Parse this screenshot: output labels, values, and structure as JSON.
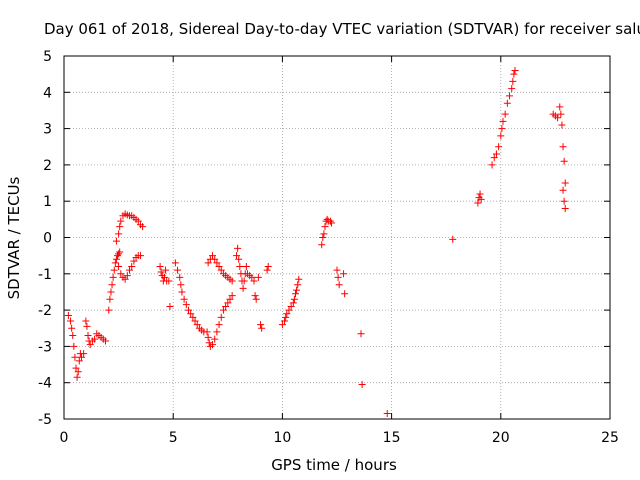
{
  "chart_data": {
    "type": "scatter",
    "title": "Day 061 of 2018, Sidereal Day-to-day VTEC variation (SDTVAR) for receiver salu",
    "xlabel": "GPS time / hours",
    "ylabel": "SDTVAR / TECUs",
    "xlim": [
      0,
      25
    ],
    "ylim": [
      -5,
      5
    ],
    "xticks": [
      0,
      5,
      10,
      15,
      20,
      25
    ],
    "yticks": [
      -5,
      -4,
      -3,
      -2,
      -1,
      0,
      1,
      2,
      3,
      4,
      5
    ],
    "grid": true,
    "marker": "+",
    "colors": {
      "points": "#ff0000",
      "grid": "#a0a0a0",
      "axes": "#000000"
    },
    "series": [
      {
        "values": [
          [
            0.2,
            -2.15
          ],
          [
            0.3,
            -2.3
          ],
          [
            0.35,
            -2.5
          ],
          [
            0.4,
            -2.7
          ],
          [
            0.45,
            -3.0
          ],
          [
            0.5,
            -3.3
          ],
          [
            0.55,
            -3.6
          ],
          [
            0.6,
            -3.85
          ],
          [
            0.65,
            -3.7
          ],
          [
            0.7,
            -3.4
          ],
          [
            0.75,
            -3.2
          ],
          [
            0.8,
            -3.3
          ],
          [
            0.9,
            -3.2
          ],
          [
            1.0,
            -2.3
          ],
          [
            1.05,
            -2.45
          ],
          [
            1.1,
            -2.7
          ],
          [
            1.15,
            -2.85
          ],
          [
            1.2,
            -2.95
          ],
          [
            1.3,
            -2.85
          ],
          [
            1.4,
            -2.8
          ],
          [
            1.5,
            -2.65
          ],
          [
            1.6,
            -2.7
          ],
          [
            1.7,
            -2.75
          ],
          [
            1.8,
            -2.8
          ],
          [
            1.9,
            -2.85
          ],
          [
            2.05,
            -2.0
          ],
          [
            2.1,
            -1.7
          ],
          [
            2.15,
            -1.5
          ],
          [
            2.2,
            -1.3
          ],
          [
            2.25,
            -1.1
          ],
          [
            2.3,
            -0.9
          ],
          [
            2.35,
            -0.7
          ],
          [
            2.4,
            -0.6
          ],
          [
            2.45,
            -0.5
          ],
          [
            2.5,
            -0.45
          ],
          [
            2.55,
            -0.4
          ],
          [
            2.4,
            -0.1
          ],
          [
            2.5,
            0.1
          ],
          [
            2.55,
            0.3
          ],
          [
            2.6,
            0.45
          ],
          [
            2.7,
            0.6
          ],
          [
            2.8,
            0.65
          ],
          [
            2.9,
            0.62
          ],
          [
            3.0,
            0.6
          ],
          [
            3.1,
            0.6
          ],
          [
            3.2,
            0.55
          ],
          [
            3.3,
            0.5
          ],
          [
            3.4,
            0.45
          ],
          [
            3.5,
            0.35
          ],
          [
            3.6,
            0.3
          ],
          [
            2.5,
            -0.8
          ],
          [
            2.6,
            -1.0
          ],
          [
            2.7,
            -1.1
          ],
          [
            2.8,
            -1.15
          ],
          [
            2.9,
            -1.05
          ],
          [
            3.0,
            -0.9
          ],
          [
            3.1,
            -0.8
          ],
          [
            3.2,
            -0.65
          ],
          [
            3.3,
            -0.55
          ],
          [
            3.4,
            -0.5
          ],
          [
            3.5,
            -0.5
          ],
          [
            4.4,
            -0.8
          ],
          [
            4.45,
            -0.95
          ],
          [
            4.5,
            -1.05
          ],
          [
            4.55,
            -1.2
          ],
          [
            4.6,
            -1.1
          ],
          [
            4.65,
            -0.9
          ],
          [
            4.7,
            -1.2
          ],
          [
            4.8,
            -1.2
          ],
          [
            4.85,
            -1.9
          ],
          [
            5.1,
            -0.7
          ],
          [
            5.2,
            -0.9
          ],
          [
            5.3,
            -1.1
          ],
          [
            5.35,
            -1.3
          ],
          [
            5.4,
            -1.5
          ],
          [
            5.5,
            -1.7
          ],
          [
            5.6,
            -1.85
          ],
          [
            5.7,
            -2.0
          ],
          [
            5.8,
            -2.1
          ],
          [
            5.9,
            -2.2
          ],
          [
            6.0,
            -2.3
          ],
          [
            6.1,
            -2.4
          ],
          [
            6.2,
            -2.5
          ],
          [
            6.3,
            -2.55
          ],
          [
            6.4,
            -2.6
          ],
          [
            6.55,
            -2.6
          ],
          [
            6.6,
            -2.75
          ],
          [
            6.65,
            -2.9
          ],
          [
            6.7,
            -3.0
          ],
          [
            6.8,
            -2.95
          ],
          [
            6.9,
            -2.8
          ],
          [
            7.0,
            -2.6
          ],
          [
            7.1,
            -2.4
          ],
          [
            7.2,
            -2.2
          ],
          [
            7.3,
            -2.0
          ],
          [
            7.4,
            -1.9
          ],
          [
            7.5,
            -1.8
          ],
          [
            7.6,
            -1.7
          ],
          [
            7.7,
            -1.6
          ],
          [
            6.6,
            -0.7
          ],
          [
            6.7,
            -0.6
          ],
          [
            6.8,
            -0.5
          ],
          [
            6.9,
            -0.6
          ],
          [
            7.0,
            -0.7
          ],
          [
            7.1,
            -0.8
          ],
          [
            7.2,
            -0.9
          ],
          [
            7.3,
            -1.0
          ],
          [
            7.4,
            -1.05
          ],
          [
            7.5,
            -1.1
          ],
          [
            7.6,
            -1.15
          ],
          [
            7.7,
            -1.2
          ],
          [
            7.9,
            -0.5
          ],
          [
            7.95,
            -0.3
          ],
          [
            8.0,
            -0.6
          ],
          [
            8.05,
            -0.8
          ],
          [
            8.1,
            -1.0
          ],
          [
            8.15,
            -1.2
          ],
          [
            8.2,
            -1.4
          ],
          [
            8.25,
            -1.2
          ],
          [
            8.3,
            -1.0
          ],
          [
            8.35,
            -0.8
          ],
          [
            8.4,
            -1.0
          ],
          [
            8.5,
            -1.05
          ],
          [
            8.6,
            -1.1
          ],
          [
            8.7,
            -1.2
          ],
          [
            8.75,
            -1.6
          ],
          [
            8.8,
            -1.7
          ],
          [
            8.9,
            -1.1
          ],
          [
            9.0,
            -2.4
          ],
          [
            9.05,
            -2.5
          ],
          [
            9.3,
            -0.9
          ],
          [
            9.35,
            -0.8
          ],
          [
            10.0,
            -2.4
          ],
          [
            10.1,
            -2.3
          ],
          [
            10.15,
            -2.2
          ],
          [
            10.2,
            -2.1
          ],
          [
            10.3,
            -2.0
          ],
          [
            10.4,
            -1.9
          ],
          [
            10.5,
            -1.8
          ],
          [
            10.55,
            -1.7
          ],
          [
            10.6,
            -1.55
          ],
          [
            10.65,
            -1.45
          ],
          [
            10.7,
            -1.3
          ],
          [
            10.75,
            -1.15
          ],
          [
            11.8,
            -0.2
          ],
          [
            11.85,
            0.0
          ],
          [
            11.9,
            0.1
          ],
          [
            11.95,
            0.3
          ],
          [
            12.0,
            0.45
          ],
          [
            12.05,
            0.5
          ],
          [
            12.1,
            0.45
          ],
          [
            12.2,
            0.45
          ],
          [
            12.25,
            0.4
          ],
          [
            12.5,
            -0.9
          ],
          [
            12.55,
            -1.1
          ],
          [
            12.6,
            -1.3
          ],
          [
            12.8,
            -1.0
          ],
          [
            12.85,
            -1.55
          ],
          [
            13.6,
            -2.65
          ],
          [
            13.65,
            -4.05
          ],
          [
            14.8,
            -4.85
          ],
          [
            17.8,
            -0.05
          ],
          [
            18.95,
            0.95
          ],
          [
            19.0,
            1.1
          ],
          [
            19.05,
            1.2
          ],
          [
            19.1,
            1.05
          ],
          [
            19.6,
            2.0
          ],
          [
            19.7,
            2.2
          ],
          [
            19.8,
            2.3
          ],
          [
            19.9,
            2.5
          ],
          [
            20.0,
            2.8
          ],
          [
            20.05,
            3.0
          ],
          [
            20.1,
            3.2
          ],
          [
            20.2,
            3.4
          ],
          [
            20.3,
            3.7
          ],
          [
            20.4,
            3.9
          ],
          [
            20.5,
            4.1
          ],
          [
            20.55,
            4.3
          ],
          [
            20.6,
            4.5
          ],
          [
            20.65,
            4.6
          ],
          [
            22.4,
            3.4
          ],
          [
            22.5,
            3.35
          ],
          [
            22.6,
            3.3
          ],
          [
            22.7,
            3.6
          ],
          [
            22.75,
            3.4
          ],
          [
            22.8,
            3.1
          ],
          [
            22.85,
            2.5
          ],
          [
            22.9,
            2.1
          ],
          [
            22.95,
            1.5
          ],
          [
            22.85,
            1.3
          ],
          [
            22.9,
            1.0
          ],
          [
            22.95,
            0.8
          ]
        ]
      }
    ]
  }
}
